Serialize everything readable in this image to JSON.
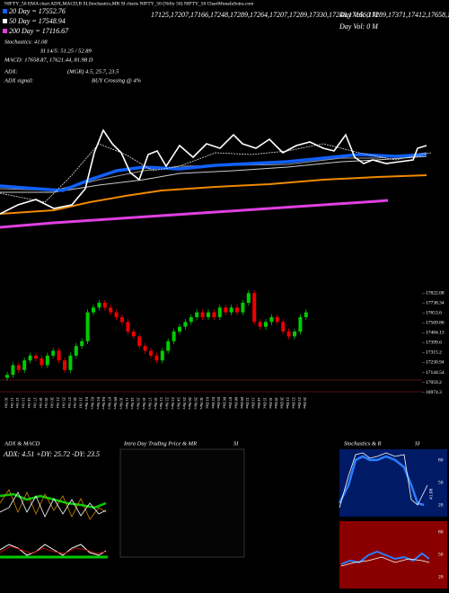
{
  "chart_data": {
    "type": "candlestick",
    "header": "NIFTY_50 EMA chart ADX,MACD,B SI,Stochastics,MR SI charts NIFTY_50 (Nifty 50) NIFTY_50 ChartMunafaSutra.com",
    "ema20": "20 Day = 17552.76",
    "ema50": "50 Day = 17548.94",
    "ema200": "200 Day = 17116.67",
    "close": [
      17125,
      17207,
      17166,
      17248,
      17289,
      17264,
      17207,
      17289,
      17330,
      17248,
      17166,
      17289,
      17371,
      17412,
      17658,
      17699,
      17740,
      17699,
      17658,
      17617,
      17576,
      17494,
      17453,
      17371,
      17330,
      17289,
      17248,
      17330,
      17412,
      17494,
      17535,
      17576,
      17617,
      17658,
      17617,
      17658,
      17617,
      17699,
      17658,
      17699,
      17658,
      17740,
      17822,
      17576,
      17535,
      17576,
      17617,
      17576,
      17494,
      17453,
      17494,
      17617,
      17658
    ],
    "day_vol": "Day Vol: 0  M",
    "day_vol2": "Day Vol: 0  M",
    "stochastics": "Stochastics: 41.08",
    "si": "SI 14/5: 51.25 / 52.89",
    "macd": "MACD: 17658.87, 17621.44, 81.98 D",
    "adx": "ADX:",
    "adx_values": "(MGR) 4.5, 25.7, 23.5",
    "adx_signal": "ADX  signal:",
    "adx_signal_value": "BUY Crossing @ 4%",
    "categories": [
      "10 Oct",
      "11 Oct",
      "12 Oct",
      "13 Oct",
      "14 Oct",
      "17 Oct",
      "18 Oct",
      "19 Oct",
      "20 Oct",
      "21 Oct",
      "25 Oct",
      "27 Oct",
      "28 Oct",
      "31 Oct",
      "01 Nov",
      "02 Nov",
      "03 Nov",
      "04 Nov",
      "07 Nov",
      "09 Nov",
      "10 Nov",
      "11 Nov",
      "14 Nov",
      "15 Nov",
      "16 Nov",
      "17 Nov",
      "18 Nov",
      "21 Nov",
      "22 Nov",
      "23 Nov",
      "24 Nov",
      "25 Nov",
      "28 Nov",
      "29 Nov",
      "30 Nov",
      "01 Dec",
      "02 Dec",
      "05 Dec",
      "06 Dec",
      "07 Dec",
      "08 Dec",
      "09 Dec",
      "12 Dec",
      "13 Dec",
      "14 Dec",
      "15 Dec",
      "16 Dec",
      "19 Dec",
      "20 Dec",
      "21 Dec",
      "22 Dec",
      "23 Dec",
      "26 Dec"
    ],
    "open": [
      17100,
      17125,
      17207,
      17166,
      17248,
      17289,
      17264,
      17207,
      17289,
      17330,
      17248,
      17166,
      17289,
      17371,
      17412,
      17658,
      17699,
      17740,
      17699,
      17658,
      17617,
      17576,
      17494,
      17453,
      17371,
      17330,
      17289,
      17248,
      17330,
      17412,
      17494,
      17535,
      17576,
      17617,
      17658,
      17617,
      17658,
      17617,
      17699,
      17658,
      17699,
      17658,
      17740,
      17822,
      17576,
      17535,
      17576,
      17617,
      17576,
      17494,
      17453,
      17494,
      17617
    ],
    "high": [
      17150,
      17232,
      17232,
      17273,
      17314,
      17314,
      17289,
      17314,
      17355,
      17355,
      17273,
      17314,
      17396,
      17437,
      17683,
      17724,
      17765,
      17765,
      17724,
      17683,
      17642,
      17601,
      17519,
      17478,
      17396,
      17355,
      17314,
      17355,
      17437,
      17519,
      17560,
      17601,
      17642,
      17683,
      17683,
      17683,
      17683,
      17724,
      17724,
      17724,
      17724,
      17765,
      17847,
      17847,
      17601,
      17601,
      17642,
      17642,
      17601,
      17519,
      17519,
      17642,
      17683
    ],
    "low": [
      17075,
      17100,
      17141,
      17141,
      17223,
      17239,
      17182,
      17182,
      17264,
      17223,
      17141,
      17141,
      17264,
      17346,
      17387,
      17633,
      17674,
      17674,
      17633,
      17592,
      17551,
      17469,
      17428,
      17346,
      17305,
      17264,
      17223,
      17223,
      17305,
      17387,
      17469,
      17510,
      17551,
      17592,
      17592,
      17592,
      17592,
      17592,
      17633,
      17633,
      17633,
      17633,
      17715,
      17551,
      17510,
      17510,
      17551,
      17551,
      17469,
      17428,
      17428,
      17469,
      17592
    ],
    "up_color": "#00cc00",
    "down_color": "#ee0000",
    "ylim": [
      16950,
      17870
    ],
    "yticks": [
      17822.08,
      17738.34,
      17653.6,
      17569.86,
      17484.13,
      17399.6,
      17315.2,
      17230.94,
      17144.54,
      17059.2,
      16974.3
    ],
    "panel_adx_title": "ADX  & MACD",
    "panel_adx_values": "ADX: 4.51  +DY: 25.72  -DY: 23.5",
    "panel_intra_title": "Intra  Day Trading Price  & MR",
    "panel_intra_si": "SI",
    "panel_stoch_title": "Stochastics & R",
    "panel_stoch_si": "SI",
    "stoch_value": "41.08",
    "stoch_ticks": [
      "80",
      "50",
      "20"
    ],
    "rsi_ticks": [
      "80",
      "50",
      "20"
    ]
  }
}
